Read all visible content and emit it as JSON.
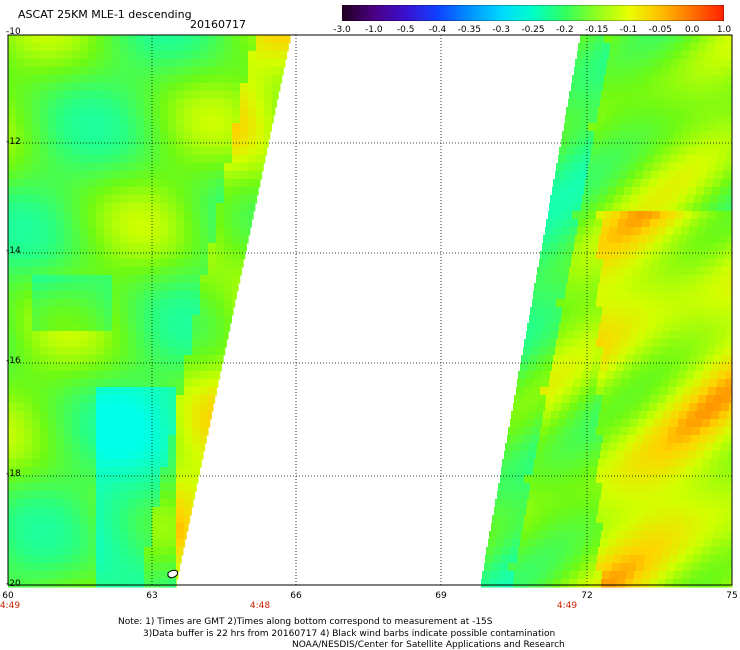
{
  "header": {
    "title": "ASCAT 25KM MLE-1 descending",
    "date": "20160717"
  },
  "colorbar": {
    "labels": [
      "-3.0",
      "-1.0",
      "-0.5",
      "-0.4",
      "-0.35",
      "-0.3",
      "-0.25",
      "-0.2",
      "-0.15",
      "-0.1",
      "-0.05",
      "0.0",
      "1.0"
    ],
    "colors": [
      "#200020",
      "#4a0080",
      "#3a10d0",
      "#1040ff",
      "#0090ff",
      "#00d8ff",
      "#00ffc8",
      "#30ff60",
      "#90ff20",
      "#e8ff00",
      "#ffc000",
      "#ff7000",
      "#ff2000"
    ]
  },
  "map": {
    "lat_labels": [
      "-10",
      "-12",
      "-14",
      "-16",
      "-18",
      "-20"
    ],
    "lon_labels": [
      "60",
      "63",
      "66",
      "69",
      "72",
      "75"
    ],
    "time_labels": [
      "4:49",
      "4:48",
      "4:49"
    ]
  },
  "notes": {
    "line1": "Note: 1) Times are GMT 2)Times along bottom correspond to measurement at -15S",
    "line2": "3)Data buffer is 22 hrs from 20160717 4) Black wind barbs indicate possible contamination",
    "line3": "NOAA/NESDIS/Center for Satellite Applications and Research"
  }
}
